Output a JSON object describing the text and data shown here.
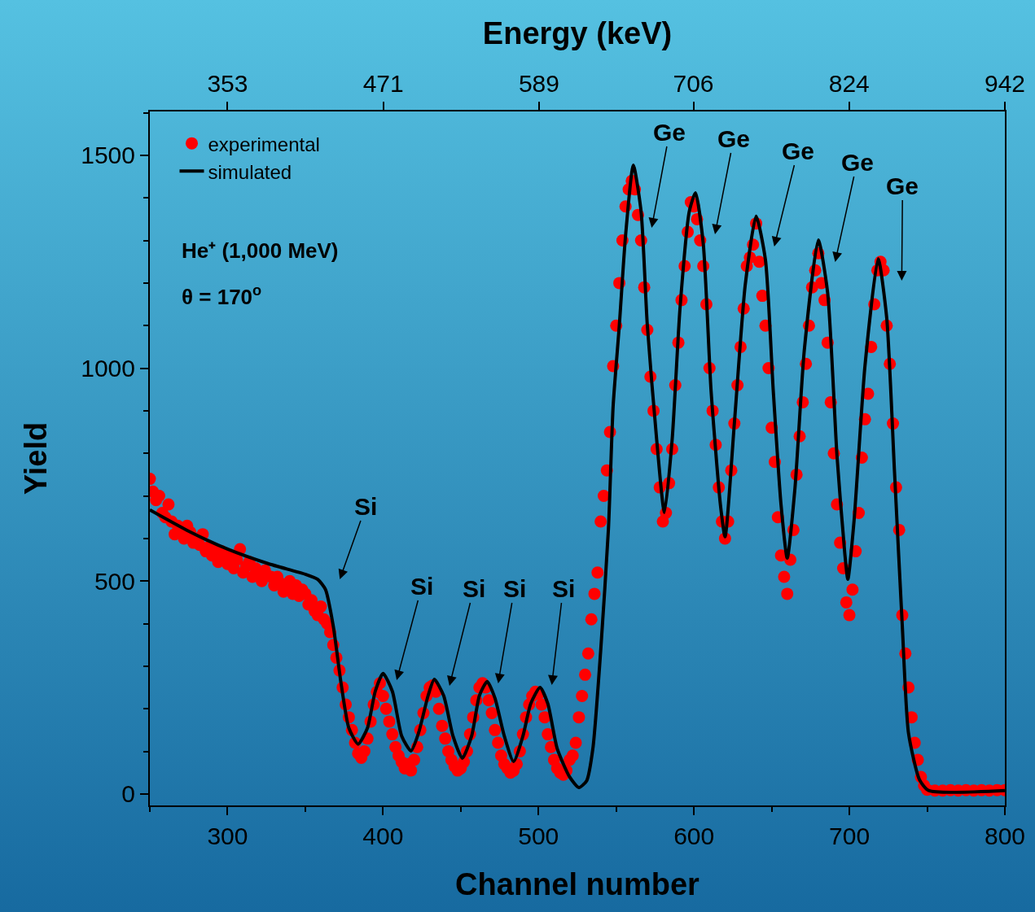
{
  "chart_data": {
    "type": "line",
    "xlabel": "Channel number",
    "ylabel": "Yield",
    "x2label": "Energy (keV)",
    "xlim": [
      250,
      800
    ],
    "xticks": [
      300,
      400,
      500,
      600,
      700,
      800
    ],
    "x2lim": [
      294.1,
      942
    ],
    "x2ticks": [
      353,
      471,
      589,
      706,
      824,
      942
    ],
    "ylim": [
      -27,
      1603
    ],
    "yticks": [
      0,
      500,
      1000,
      1500
    ],
    "grid": false,
    "legend": "top left",
    "series": [
      {
        "name": "experimental",
        "type": "scatter",
        "marker": "circle",
        "color": "#ff0000",
        "x": [
          250,
          252,
          254,
          256,
          258,
          260,
          262,
          264,
          266,
          268,
          270,
          272,
          274,
          276,
          278,
          280,
          282,
          284,
          286,
          288,
          290,
          292,
          294,
          296,
          298,
          300,
          302,
          304,
          306,
          308,
          310,
          312,
          314,
          316,
          318,
          320,
          322,
          324,
          328,
          330,
          332,
          334,
          336,
          338,
          340,
          342,
          344,
          346,
          348,
          350,
          352,
          354,
          356,
          358,
          360,
          362,
          364,
          366,
          368,
          370,
          372,
          374,
          376,
          378,
          380,
          382,
          384,
          386,
          388,
          390,
          392,
          394,
          396,
          398,
          400,
          402,
          404,
          406,
          408,
          410,
          412,
          414,
          416,
          418,
          420,
          422,
          424,
          426,
          428,
          430,
          432,
          434,
          436,
          438,
          440,
          442,
          444,
          446,
          448,
          450,
          452,
          454,
          456,
          458,
          460,
          462,
          464,
          466,
          468,
          470,
          472,
          474,
          476,
          478,
          480,
          482,
          484,
          486,
          488,
          490,
          492,
          494,
          496,
          498,
          500,
          502,
          504,
          506,
          508,
          510,
          512,
          514,
          516,
          518,
          520,
          522,
          524,
          526,
          528,
          530,
          532,
          534,
          536,
          538,
          540,
          542,
          544,
          546,
          548,
          550,
          552,
          554,
          556,
          558,
          560,
          562,
          564,
          566,
          568,
          570,
          572,
          574,
          576,
          578,
          580,
          582,
          584,
          586,
          588,
          590,
          592,
          594,
          596,
          598,
          600,
          602,
          604,
          606,
          608,
          610,
          612,
          614,
          616,
          618,
          620,
          622,
          624,
          626,
          628,
          630,
          632,
          634,
          636,
          638,
          640,
          642,
          644,
          646,
          648,
          650,
          652,
          654,
          656,
          658,
          660,
          662,
          664,
          666,
          668,
          670,
          672,
          674,
          676,
          678,
          680,
          682,
          684,
          686,
          688,
          690,
          692,
          694,
          696,
          698,
          700,
          702,
          704,
          706,
          708,
          710,
          712,
          714,
          716,
          718,
          720,
          722,
          724,
          726,
          728,
          730,
          732,
          734,
          736,
          738,
          740,
          742,
          744,
          746,
          748,
          750,
          755,
          760,
          765,
          770,
          775,
          780,
          785,
          790,
          795,
          800
        ],
        "values": [
          740,
          710,
          690,
          700,
          660,
          650,
          680,
          640,
          610,
          630,
          620,
          600,
          630,
          615,
          590,
          600,
          585,
          610,
          570,
          580,
          560,
          575,
          545,
          570,
          555,
          540,
          560,
          530,
          550,
          575,
          520,
          535,
          545,
          510,
          530,
          520,
          500,
          525,
          510,
          490,
          510,
          495,
          475,
          490,
          500,
          470,
          490,
          465,
          480,
          470,
          445,
          455,
          430,
          420,
          440,
          410,
          400,
          380,
          350,
          320,
          290,
          250,
          210,
          180,
          150,
          120,
          95,
          85,
          100,
          130,
          170,
          210,
          240,
          260,
          230,
          200,
          170,
          140,
          110,
          90,
          75,
          60,
          70,
          55,
          80,
          110,
          150,
          190,
          230,
          250,
          255,
          240,
          200,
          160,
          130,
          100,
          80,
          65,
          55,
          60,
          75,
          100,
          140,
          180,
          220,
          250,
          260,
          250,
          220,
          190,
          150,
          120,
          90,
          70,
          60,
          50,
          55,
          70,
          100,
          140,
          180,
          210,
          230,
          240,
          235,
          210,
          180,
          140,
          110,
          80,
          60,
          50,
          45,
          55,
          80,
          90,
          120,
          180,
          230,
          280,
          330,
          410,
          470,
          520,
          640,
          700,
          760,
          850,
          1005,
          1100,
          1200,
          1300,
          1380,
          1420,
          1440,
          1420,
          1360,
          1300,
          1190,
          1090,
          980,
          900,
          810,
          720,
          640,
          660,
          730,
          810,
          960,
          1060,
          1160,
          1240,
          1320,
          1390,
          1380,
          1350,
          1300,
          1240,
          1150,
          1000,
          900,
          820,
          720,
          640,
          600,
          640,
          760,
          870,
          960,
          1050,
          1140,
          1240,
          1260,
          1290,
          1340,
          1250,
          1170,
          1100,
          1000,
          860,
          780,
          650,
          560,
          510,
          470,
          550,
          620,
          750,
          840,
          920,
          1010,
          1100,
          1190,
          1230,
          1270,
          1200,
          1160,
          1060,
          920,
          800,
          680,
          590,
          530,
          450,
          420,
          480,
          570,
          660,
          790,
          880,
          940,
          1050,
          1150,
          1230,
          1250,
          1230,
          1100,
          1010,
          870,
          720,
          620,
          420,
          330,
          250,
          180,
          120,
          80,
          40,
          20,
          10,
          8,
          8,
          9,
          8,
          9,
          8,
          9,
          8,
          9,
          9
        ]
      },
      {
        "name": "simulated",
        "marker": "none",
        "color": "#000000",
        "x": [
          250,
          274,
          300,
          326,
          350,
          358,
          363,
          368,
          373,
          378,
          384,
          390,
          395,
          400,
          406,
          412,
          418,
          423,
          429,
          433,
          439,
          445,
          451,
          457,
          462,
          467,
          472,
          478,
          484,
          490,
          495,
          501,
          506,
          512,
          520,
          526,
          531,
          535,
          540,
          545,
          548,
          552,
          556,
          561,
          566,
          570,
          576,
          581,
          586,
          591,
          597,
          601,
          606,
          611,
          617,
          620,
          626,
          633,
          640,
          646,
          651,
          656,
          660,
          665,
          671,
          680,
          686,
          692,
          697,
          699,
          703,
          710,
          718.5,
          724,
          729,
          734,
          738,
          745,
          751,
          800
        ],
        "values": [
          667,
          619,
          575,
          541,
          516,
          504,
          480,
          394,
          260,
          155,
          117,
          155,
          241,
          283,
          241,
          136,
          101,
          145,
          231,
          269,
          231,
          136,
          84,
          136,
          231,
          264,
          225,
          136,
          76,
          136,
          212,
          250,
          212,
          107,
          40,
          15,
          31,
          107,
          336,
          623,
          910,
          1101,
          1311,
          1477,
          1368,
          1101,
          833,
          661,
          833,
          1139,
          1368,
          1412,
          1292,
          948,
          680,
          604,
          871,
          1196,
          1357,
          1254,
          948,
          680,
          554,
          719,
          1043,
          1301,
          1177,
          795,
          566,
          504,
          642,
          1005,
          1257,
          1118,
          757,
          396,
          143,
          34,
          8,
          8
        ]
      }
    ],
    "annotations": [
      "Si",
      "Si",
      "Si",
      "Si",
      "Si",
      "Ge",
      "Ge",
      "Ge",
      "Ge",
      "Ge",
      "He⁺ (1,000 MeV)",
      "θ = 170$^{o}$"
    ]
  }
}
